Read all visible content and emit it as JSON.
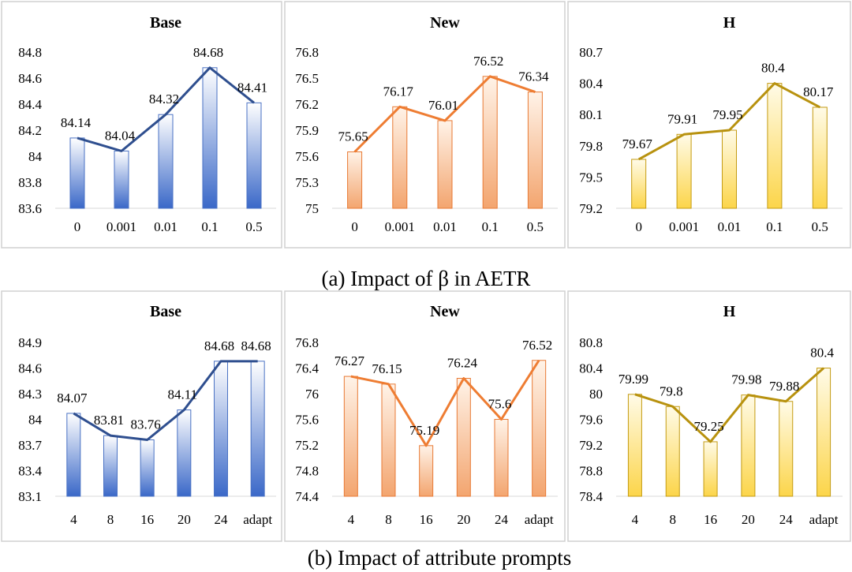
{
  "colors": {
    "blue": {
      "line": "#2f4f8f",
      "top": "#ffffff",
      "bottom": "#3a68c8",
      "edge": "#4a72c4"
    },
    "orange": {
      "line": "#ee7d33",
      "top": "#fff3e8",
      "bottom": "#f3a56f",
      "edge": "#e87a35"
    },
    "gold": {
      "line": "#b8920f",
      "top": "#fffbe8",
      "bottom": "#fcd54a",
      "edge": "#c49b12"
    }
  },
  "captions": {
    "a": "(a) Impact of β in AETR",
    "b": "(b) Impact of  attribute prompts"
  },
  "chart_data": [
    {
      "type": "bar",
      "title": "Base",
      "color": "blue",
      "categories": [
        "0",
        "0.001",
        "0.01",
        "0.1",
        "0.5"
      ],
      "values": [
        84.14,
        84.04,
        84.32,
        84.68,
        84.41
      ],
      "ylim": [
        83.6,
        84.8
      ],
      "yticks": [
        "83.6",
        "83.8",
        "84",
        "84.2",
        "84.4",
        "84.6",
        "84.8"
      ]
    },
    {
      "type": "bar",
      "title": "New",
      "color": "orange",
      "categories": [
        "0",
        "0.001",
        "0.01",
        "0.1",
        "0.5"
      ],
      "values": [
        75.65,
        76.17,
        76.01,
        76.52,
        76.34
      ],
      "ylim": [
        75.0,
        76.8
      ],
      "yticks": [
        "75",
        "75.3",
        "75.6",
        "75.9",
        "76.2",
        "76.5",
        "76.8"
      ]
    },
    {
      "type": "bar",
      "title": "H",
      "color": "gold",
      "categories": [
        "0",
        "0.001",
        "0.01",
        "0.1",
        "0.5"
      ],
      "values": [
        79.67,
        79.91,
        79.95,
        80.4,
        80.17
      ],
      "ylim": [
        79.2,
        80.7
      ],
      "yticks": [
        "79.2",
        "79.5",
        "79.8",
        "80.1",
        "80.4",
        "80.7"
      ]
    },
    {
      "type": "bar",
      "title": "Base",
      "color": "blue",
      "categories": [
        "4",
        "8",
        "16",
        "20",
        "24",
        "adapt"
      ],
      "values": [
        84.07,
        83.81,
        83.76,
        84.11,
        84.68,
        84.68
      ],
      "ylim": [
        83.1,
        84.9
      ],
      "yticks": [
        "83.1",
        "83.4",
        "83.7",
        "84",
        "84.3",
        "84.6",
        "84.9"
      ]
    },
    {
      "type": "bar",
      "title": "New",
      "color": "orange",
      "categories": [
        "4",
        "8",
        "16",
        "20",
        "24",
        "adapt"
      ],
      "values": [
        76.27,
        76.15,
        75.19,
        76.24,
        75.6,
        76.52
      ],
      "ylim": [
        74.4,
        76.8
      ],
      "yticks": [
        "74.4",
        "74.8",
        "75.2",
        "75.6",
        "76",
        "76.4",
        "76.8"
      ]
    },
    {
      "type": "bar",
      "title": "H",
      "color": "gold",
      "categories": [
        "4",
        "8",
        "16",
        "20",
        "24",
        "adapt"
      ],
      "values": [
        79.99,
        79.8,
        79.25,
        79.98,
        79.88,
        80.4
      ],
      "ylim": [
        78.4,
        80.8
      ],
      "yticks": [
        "78.4",
        "78.8",
        "79.2",
        "79.6",
        "80",
        "80.4",
        "80.8"
      ]
    }
  ]
}
